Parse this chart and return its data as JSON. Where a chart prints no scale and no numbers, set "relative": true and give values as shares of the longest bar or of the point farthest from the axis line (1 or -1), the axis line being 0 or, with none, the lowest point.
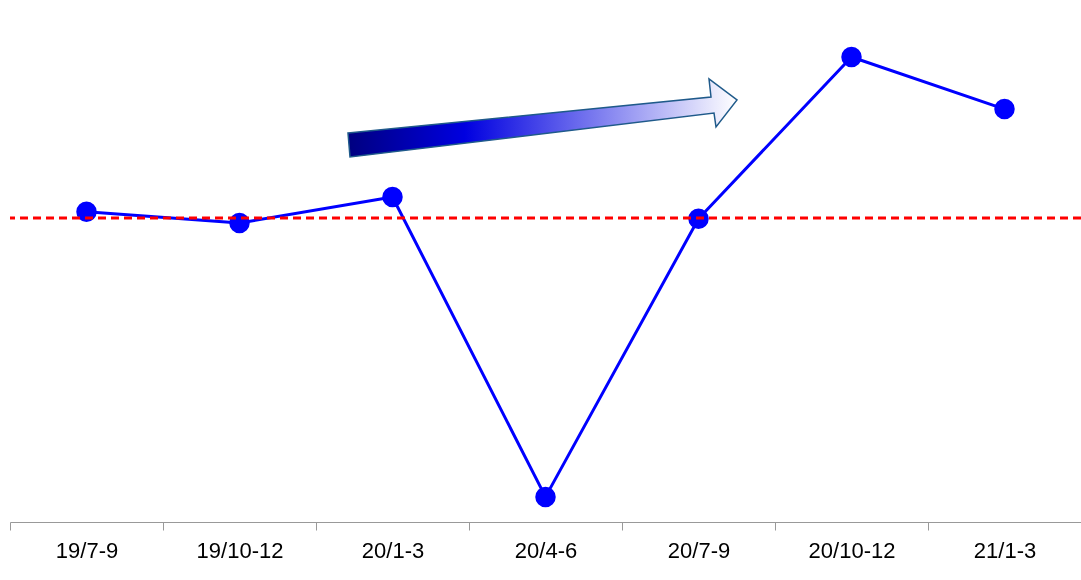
{
  "chart_data": {
    "type": "line",
    "relative": true,
    "categories": [
      "19/7-9",
      "19/10-12",
      "20/1-3",
      "20/4-6",
      "20/7-9",
      "20/10-12",
      "21/1-3"
    ],
    "series": [
      {
        "color": "#0000ff",
        "values": [
          0.667,
          0.643,
          0.699,
          0.054,
          0.652,
          1,
          0.888
        ]
      }
    ],
    "ref_lines": [
      {
        "axis": "y",
        "value": 0.654,
        "color": "#ff0000",
        "line_style": "dashed"
      }
    ],
    "marker": "circle",
    "line_style": "solid",
    "grid": false
  }
}
